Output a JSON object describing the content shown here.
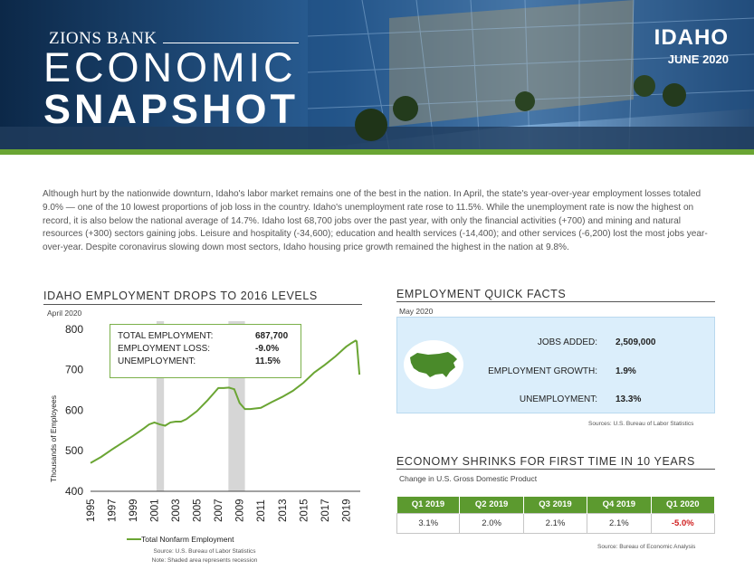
{
  "header": {
    "bank": "ZIONS BANK",
    "title_line1": "ECONOMIC",
    "title_line2": "SNAPSHOT",
    "state": "IDAHO",
    "month": "JUNE 2020"
  },
  "intro": "Although hurt by the nationwide downturn, Idaho's labor market remains one of the best in the nation. In April, the state's year-over-year employment losses totaled 9.0% — one of the 10 lowest proportions of job loss in the country. Idaho's unemployment rate rose to 11.5%. While the unemployment rate is now the highest on record, it is also below the national average of 14.7%. Idaho lost 68,700 jobs over the past year, with only the financial activities (+700) and mining and natural resources (+300) sectors gaining jobs. Leisure and hospitality (-34,600); education and health services (-14,400); and other services (-6,200) lost the most jobs year-over-year. Despite coronavirus slowing down most sectors, Idaho housing price growth remained the highest in the nation at 9.8%.",
  "employment": {
    "title": "IDAHO EMPLOYMENT DROPS TO 2016 LEVELS",
    "subtitle": "April 2020",
    "callout": [
      {
        "label": "TOTAL EMPLOYMENT:",
        "value": "687,700"
      },
      {
        "label": "EMPLOYMENT LOSS:",
        "value": "-9.0%"
      },
      {
        "label": "UNEMPLOYMENT:",
        "value": "11.5%"
      }
    ],
    "legend": "Total Nonfarm Employment",
    "source": "Source: U.S. Bureau of Labor Statistics",
    "note": "Note:  Shaded area represents recession"
  },
  "chart_data": {
    "type": "line",
    "title": "",
    "xlabel": "",
    "ylabel": "Thousands of Employees",
    "ylim": [
      400,
      820
    ],
    "xlim": [
      1995,
      2020.33
    ],
    "yticks": [
      "800",
      "700",
      "600",
      "500",
      "400"
    ],
    "xticks": [
      "1995",
      "1997",
      "1999",
      "2001",
      "2003",
      "2005",
      "2007",
      "2009",
      "2011",
      "2013",
      "2015",
      "2017",
      "2019"
    ],
    "recessions": [
      [
        2001.2,
        2001.9
      ],
      [
        2007.95,
        2009.5
      ]
    ],
    "series": [
      {
        "name": "Total Nonfarm Employment",
        "color": "#6aa533",
        "x": [
          1995.0,
          1996.0,
          1997.0,
          1998.0,
          1999.0,
          2000.0,
          2000.5,
          2001.0,
          2001.5,
          2002.0,
          2002.5,
          2003.0,
          2003.5,
          2004.0,
          2005.0,
          2006.0,
          2006.5,
          2007.0,
          2007.5,
          2008.0,
          2008.5,
          2009.0,
          2009.5,
          2010.0,
          2011.0,
          2012.0,
          2013.0,
          2014.0,
          2015.0,
          2016.0,
          2017.0,
          2018.0,
          2019.0,
          2019.5,
          2019.9,
          2020.0,
          2020.25
        ],
        "values": [
          470,
          485,
          503,
          520,
          537,
          555,
          565,
          570,
          565,
          562,
          570,
          572,
          572,
          578,
          598,
          625,
          640,
          655,
          655,
          656,
          652,
          618,
          603,
          603,
          606,
          620,
          633,
          648,
          668,
          693,
          712,
          733,
          757,
          766,
          772,
          770,
          688
        ]
      }
    ]
  },
  "facts": {
    "title": "EMPLOYMENT QUICK FACTS",
    "subtitle": "May 2020",
    "rows": [
      {
        "label": "JOBS ADDED:",
        "value": "2,509,000"
      },
      {
        "label": "EMPLOYMENT GROWTH:",
        "value": "1.9%"
      },
      {
        "label": "UNEMPLOYMENT:",
        "value": "13.3%"
      }
    ],
    "source": "Sources: U.S. Bureau of Labor Statistics"
  },
  "gdp": {
    "title": "ECONOMY SHRINKS FOR FIRST TIME IN 10 YEARS",
    "subtitle": "Change in U.S. Gross Domestic Product",
    "columns": [
      "Q1 2019",
      "Q2 2019",
      "Q3 2019",
      "Q4 2019",
      "Q1 2020"
    ],
    "values": [
      "3.1%",
      "2.0%",
      "2.1%",
      "2.1%",
      "-5.0%"
    ],
    "source": "Source: Bureau of Economic Analysis"
  },
  "colors": {
    "accent_green": "#6aa533",
    "table_header": "#5c9a2f",
    "facts_bg": "#dbeefb",
    "negative": "#d02020"
  },
  "icons": {
    "usa_map": "usa-map-icon"
  }
}
